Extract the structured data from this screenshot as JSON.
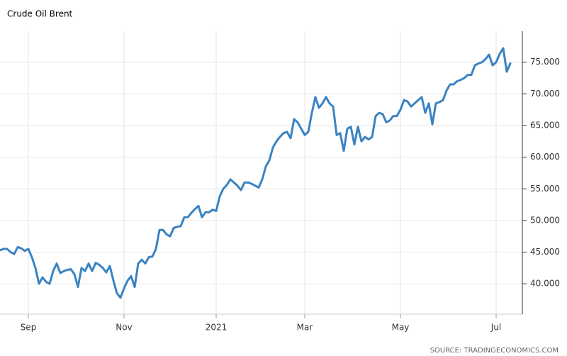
{
  "chart_data": {
    "type": "line",
    "title": "Crude Oil Brent",
    "source": "SOURCE: TRADINGECONOMICS.COM",
    "categories": [
      null,
      null,
      null,
      null,
      null,
      null,
      null,
      null,
      "Sep",
      null,
      null,
      null,
      null,
      null,
      null,
      null,
      null,
      null,
      null,
      null,
      null,
      null,
      null,
      null,
      null,
      null,
      null,
      null,
      null,
      null,
      null,
      null,
      null,
      null,
      null,
      "Nov",
      null,
      null,
      null,
      null,
      null,
      null,
      null,
      null,
      null,
      null,
      null,
      null,
      null,
      null,
      null,
      null,
      null,
      null,
      null,
      null,
      null,
      null,
      null,
      null,
      null,
      "2021",
      null,
      null,
      null,
      null,
      null,
      null,
      null,
      null,
      null,
      null,
      null,
      null,
      null,
      null,
      null,
      null,
      null,
      null,
      null,
      null,
      null,
      null,
      null,
      null,
      "Mar",
      null,
      null,
      null,
      null,
      null,
      null,
      null,
      null,
      null,
      null,
      null,
      null,
      null,
      null,
      null,
      null,
      null,
      null,
      null,
      null,
      null,
      null,
      null,
      null,
      null,
      null,
      "May",
      null,
      null,
      null,
      null,
      null,
      null,
      null,
      null,
      null,
      null,
      null,
      null,
      null,
      null,
      null,
      null,
      null,
      null,
      null,
      null,
      null,
      null,
      null,
      null,
      null,
      null,
      "Jul",
      null,
      null,
      null,
      null
    ],
    "series": [
      {
        "name": "Crude Oil Brent",
        "color": "#3a83c2",
        "values": [
          45.3,
          45.5,
          45.5,
          45.0,
          44.7,
          45.8,
          45.6,
          45.2,
          45.5,
          44.2,
          42.5,
          40.0,
          41.0,
          40.3,
          40.0,
          42.0,
          43.2,
          41.7,
          42.0,
          42.2,
          42.3,
          41.5,
          39.5,
          42.5,
          42.0,
          43.2,
          42.0,
          43.3,
          43.0,
          42.5,
          41.8,
          42.8,
          40.5,
          38.5,
          37.8,
          39.3,
          40.5,
          41.2,
          39.5,
          43.2,
          43.8,
          43.2,
          44.2,
          44.3,
          45.5,
          48.5,
          48.5,
          47.8,
          47.5,
          48.8,
          49.0,
          49.1,
          50.5,
          50.5,
          51.2,
          51.8,
          52.3,
          50.5,
          51.3,
          51.3,
          51.7,
          51.5,
          53.8,
          55.0,
          55.6,
          56.5,
          56.0,
          55.5,
          54.8,
          56.0,
          56.0,
          55.8,
          55.5,
          55.2,
          56.5,
          58.5,
          59.5,
          61.5,
          62.5,
          63.2,
          63.8,
          64.0,
          63.0,
          66.0,
          65.5,
          64.5,
          63.5,
          64.0,
          67.0,
          69.5,
          67.8,
          68.5,
          69.5,
          68.5,
          68.0,
          63.5,
          63.8,
          61.0,
          64.5,
          64.8,
          62.0,
          64.8,
          62.5,
          63.2,
          62.8,
          63.2,
          66.5,
          67.0,
          66.8,
          65.5,
          65.8,
          66.5,
          66.5,
          67.5,
          69.0,
          68.8,
          68.0,
          68.5,
          69.0,
          69.5,
          67.0,
          68.5,
          65.2,
          68.5,
          68.7,
          69.0,
          70.5,
          71.5,
          71.5,
          72.0,
          72.2,
          72.5,
          73.0,
          73.0,
          74.5,
          74.8,
          75.0,
          75.5,
          76.2,
          74.5,
          75.0,
          76.3,
          77.2,
          73.5,
          74.8
        ]
      }
    ],
    "ylim": [
      35.2,
      79.9
    ],
    "yticks": [
      {
        "value": 40,
        "label": "40.000"
      },
      {
        "value": 45,
        "label": "45.000"
      },
      {
        "value": 50,
        "label": "50.000"
      },
      {
        "value": 55,
        "label": "55.000"
      },
      {
        "value": 60,
        "label": "60.000"
      },
      {
        "value": 65,
        "label": "65.000"
      },
      {
        "value": 70,
        "label": "70.000"
      },
      {
        "value": 75,
        "label": "75.000"
      }
    ],
    "grid": true
  }
}
